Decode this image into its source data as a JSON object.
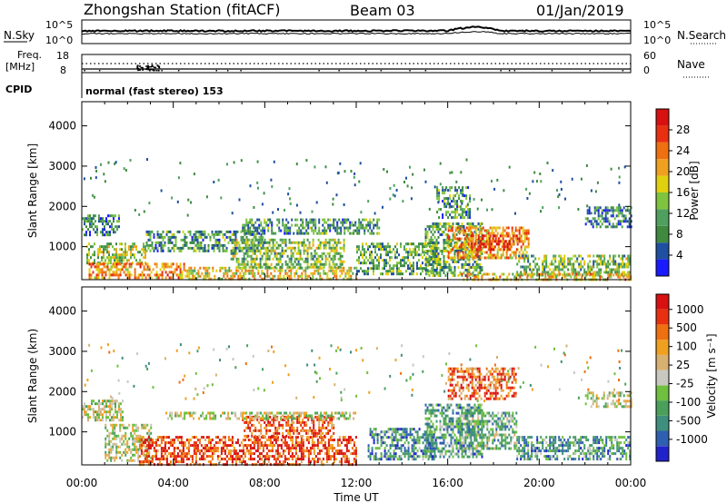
{
  "header": {
    "station": "Zhongshan Station (fitACF)",
    "beam": "Beam 03",
    "date": "01/Jan/2019"
  },
  "strips": {
    "nsky": {
      "label": "N.Sky",
      "ticks_left": [
        "10^5",
        "10^0"
      ],
      "ticks_right": [
        "10^5",
        "10^0"
      ],
      "right_label": "N.Search"
    },
    "freq": {
      "label_line1": "Freq.",
      "label_line2": "[MHz]",
      "ticks_left": [
        "18",
        "8"
      ],
      "ticks_right": [
        "60",
        "0"
      ],
      "right_label": "Nave"
    },
    "cpid": {
      "label": "CPID",
      "text": "normal (fast stereo) 153"
    }
  },
  "colors": {
    "power": [
      "#1a1aff",
      "#1f4fa0",
      "#3f8a3f",
      "#4fa05f",
      "#7fc43f",
      "#e0d00f",
      "#f0a020",
      "#ef7010",
      "#e83010",
      "#d81010"
    ],
    "velocity": [
      "#2222cc",
      "#2f5fb0",
      "#3f8f7f",
      "#4aa05a",
      "#6fc03f",
      "#c8c8c0",
      "#d8b070",
      "#f0a020",
      "#ef7010",
      "#e83010",
      "#d81010"
    ]
  },
  "chart_data": [
    {
      "type": "heatmap",
      "name": "power",
      "ylabel": "Slant Range [km]",
      "xlabel": "",
      "xlim": [
        "00:00",
        "24:00"
      ],
      "ylim": [
        180,
        4600
      ],
      "x_ticks": [
        "00:00",
        "04:00",
        "08:00",
        "12:00",
        "16:00",
        "20:00",
        "00:00"
      ],
      "y_ticks": [
        1000,
        2000,
        3000,
        4000
      ],
      "colorbar": {
        "label": "Power [dB]",
        "ticks": [
          4,
          8,
          12,
          16,
          20,
          24,
          28
        ],
        "range": [
          0,
          32
        ]
      },
      "regions": [
        {
          "t": [
            0.0,
            1.6
          ],
          "r": [
            1300,
            1800
          ],
          "level": 0.25
        },
        {
          "t": [
            0.2,
            2.8
          ],
          "r": [
            600,
            1100
          ],
          "level": 0.45
        },
        {
          "t": [
            0.3,
            4.5
          ],
          "r": [
            200,
            600
          ],
          "level": 0.7
        },
        {
          "t": [
            2.8,
            8.0
          ],
          "r": [
            900,
            1400
          ],
          "level": 0.3
        },
        {
          "t": [
            4.5,
            12.0
          ],
          "r": [
            200,
            500
          ],
          "level": 0.55
        },
        {
          "t": [
            6.5,
            11.5
          ],
          "r": [
            500,
            1200
          ],
          "level": 0.4
        },
        {
          "t": [
            7.0,
            13.0
          ],
          "r": [
            1300,
            1700
          ],
          "level": 0.3
        },
        {
          "t": [
            12.0,
            15.5
          ],
          "r": [
            300,
            1100
          ],
          "level": 0.35
        },
        {
          "t": [
            15.0,
            17.5
          ],
          "r": [
            300,
            1600
          ],
          "level": 0.35
        },
        {
          "t": [
            16.0,
            19.5
          ],
          "r": [
            700,
            1500
          ],
          "level": 0.7
        },
        {
          "t": [
            17.0,
            19.0
          ],
          "r": [
            900,
            1300
          ],
          "level": 0.85
        },
        {
          "t": [
            15.5,
            17.0
          ],
          "r": [
            1700,
            2500
          ],
          "level": 0.3
        },
        {
          "t": [
            19.0,
            24.0
          ],
          "r": [
            300,
            800
          ],
          "level": 0.4
        },
        {
          "t": [
            22.0,
            24.0
          ],
          "r": [
            1500,
            2000
          ],
          "level": 0.25
        },
        {
          "t": [
            16.5,
            24.0
          ],
          "r": [
            200,
            350
          ],
          "level": 0.6
        }
      ]
    },
    {
      "type": "heatmap",
      "name": "velocity",
      "ylabel": "Slant Range (km)",
      "xlabel": "Time UT",
      "xlim": [
        "00:00",
        "24:00"
      ],
      "ylim": [
        180,
        4600
      ],
      "x_ticks": [
        "00:00",
        "04:00",
        "08:00",
        "12:00",
        "16:00",
        "20:00",
        "00:00"
      ],
      "y_ticks": [
        1000,
        2000,
        3000,
        4000
      ],
      "colorbar": {
        "label": "Velocity [m s⁻¹]",
        "ticks": [
          1000,
          500,
          100,
          25,
          -25,
          -100,
          -500,
          -1000
        ]
      },
      "regions": [
        {
          "t": [
            0.0,
            1.8
          ],
          "r": [
            1300,
            1800
          ],
          "level": 0.5
        },
        {
          "t": [
            1.0,
            3.0
          ],
          "r": [
            300,
            1200
          ],
          "level": 0.5
        },
        {
          "t": [
            2.5,
            12.0
          ],
          "r": [
            200,
            900
          ],
          "level": 0.85
        },
        {
          "t": [
            7.0,
            11.0
          ],
          "r": [
            900,
            1400
          ],
          "level": 0.8
        },
        {
          "t": [
            3.5,
            12.0
          ],
          "r": [
            1300,
            1500
          ],
          "level": 0.5
        },
        {
          "t": [
            12.5,
            15.5
          ],
          "r": [
            300,
            1100
          ],
          "level": 0.25
        },
        {
          "t": [
            15.0,
            17.5
          ],
          "r": [
            400,
            1700
          ],
          "level": 0.3
        },
        {
          "t": [
            16.5,
            19.0
          ],
          "r": [
            600,
            1500
          ],
          "level": 0.35
        },
        {
          "t": [
            16.0,
            19.0
          ],
          "r": [
            1800,
            2600
          ],
          "level": 0.8
        },
        {
          "t": [
            19.0,
            24.0
          ],
          "r": [
            300,
            900
          ],
          "level": 0.3
        },
        {
          "t": [
            22.0,
            24.0
          ],
          "r": [
            1600,
            2000
          ],
          "level": 0.5
        }
      ]
    }
  ]
}
